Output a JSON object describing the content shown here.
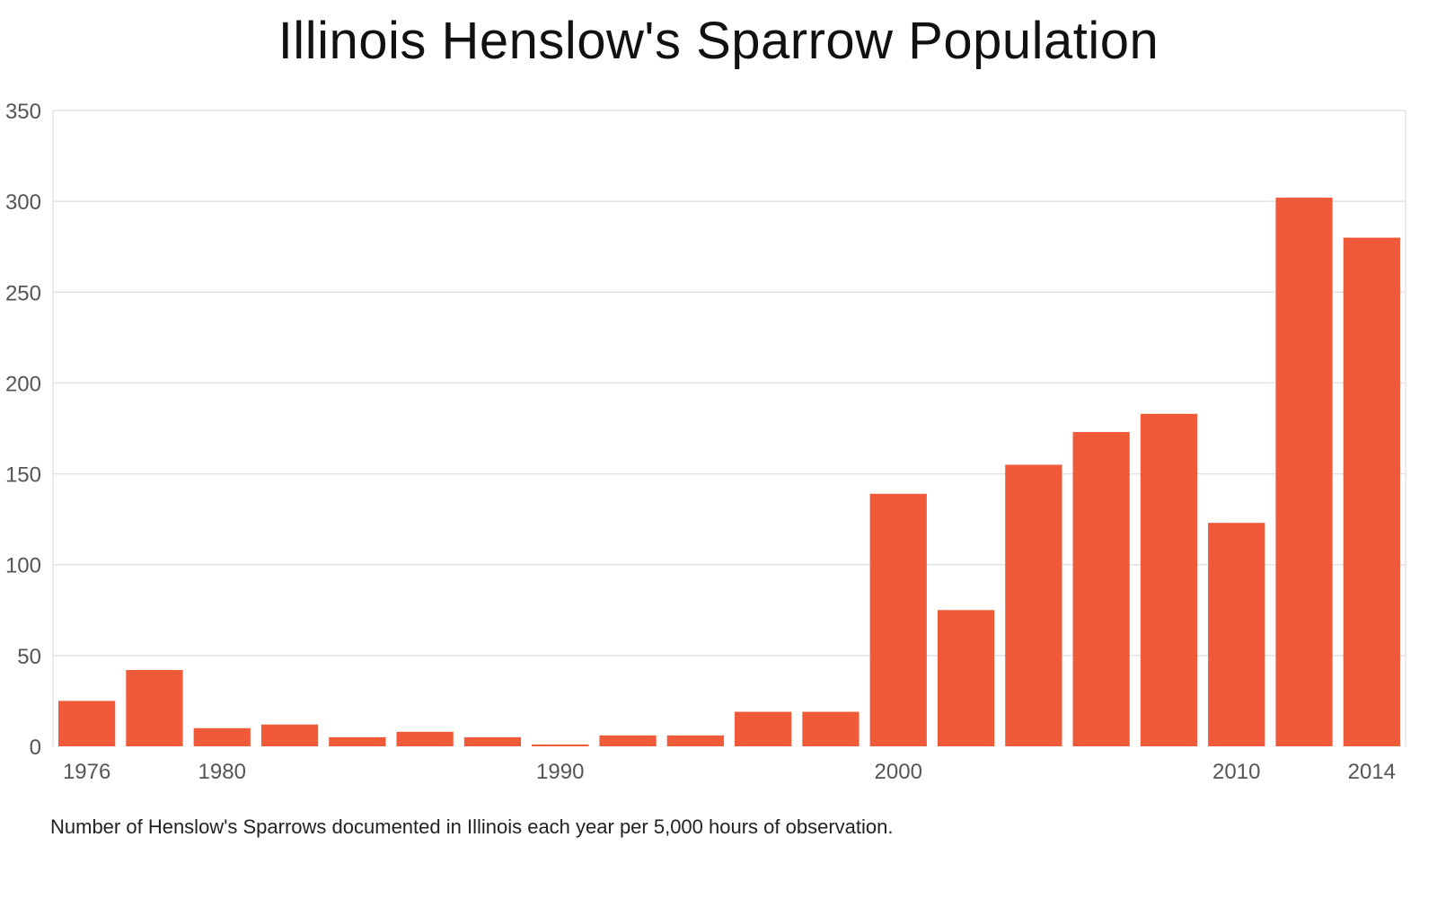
{
  "chart_data": {
    "type": "bar",
    "title": "Illinois Henslow's Sparrow Population",
    "xlabel": "",
    "ylabel": "",
    "ylim": [
      0,
      350
    ],
    "yticks": [
      0,
      50,
      100,
      150,
      200,
      250,
      300,
      350
    ],
    "xtick_labels": [
      "1976",
      "1980",
      "1990",
      "2000",
      "2010",
      "2014"
    ],
    "categories": [
      "1976",
      "1978",
      "1980",
      "1982",
      "1984",
      "1986",
      "1988",
      "1990",
      "1992",
      "1994",
      "1996",
      "1998",
      "2000",
      "2002",
      "2004",
      "2006",
      "2008",
      "2010",
      "2012",
      "2014"
    ],
    "values": [
      25,
      42,
      10,
      12,
      5,
      8,
      5,
      1,
      6,
      6,
      19,
      19,
      139,
      75,
      155,
      173,
      183,
      123,
      302,
      280
    ],
    "grid": true,
    "legend": "none",
    "bar_color": "#f05a38",
    "grid_color": "#e3e3e3",
    "note": "Number of Henslow's Sparrows documented in Illinois each year per 5,000 hours of observation."
  }
}
